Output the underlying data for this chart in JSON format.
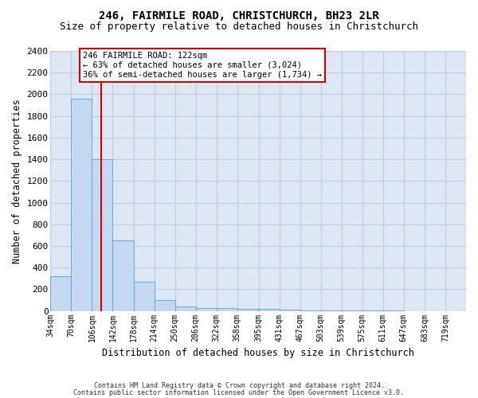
{
  "title1": "246, FAIRMILE ROAD, CHRISTCHURCH, BH23 2LR",
  "title2": "Size of property relative to detached houses in Christchurch",
  "xlabel": "Distribution of detached houses by size in Christchurch",
  "ylabel": "Number of detached properties",
  "bin_edges": [
    34,
    70,
    106,
    142,
    178,
    214,
    250,
    286,
    322,
    358,
    395,
    431,
    467,
    503,
    539,
    575,
    611,
    647,
    683,
    719,
    755
  ],
  "bar_heights": [
    320,
    1960,
    1400,
    650,
    270,
    100,
    45,
    30,
    25,
    20,
    20,
    10,
    5,
    5,
    3,
    2,
    2,
    1,
    1,
    1
  ],
  "bar_color": "#c5d8f0",
  "bar_edge_color": "#6aaad4",
  "property_sqm": 122,
  "vline_color": "#cc0000",
  "annotation_line1": "246 FAIRMILE ROAD: 122sqm",
  "annotation_line2": "← 63% of detached houses are smaller (3,024)",
  "annotation_line3": "36% of semi-detached houses are larger (1,734) →",
  "annotation_box_color": "#cc0000",
  "ylim": [
    0,
    2400
  ],
  "background_color": "#dde6f2",
  "grid_color": "#c0cce0",
  "footer1": "Contains HM Land Registry data © Crown copyright and database right 2024.",
  "footer2": "Contains public sector information licensed under the Open Government Licence v3.0."
}
